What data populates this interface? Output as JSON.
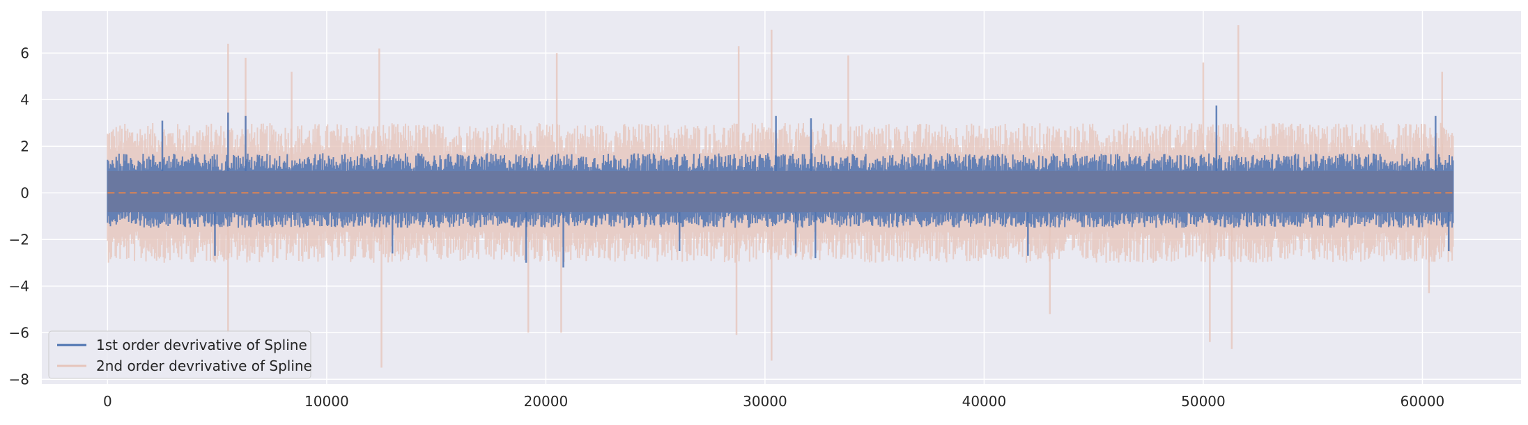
{
  "chart_data": {
    "type": "line",
    "title": "",
    "xlabel": "",
    "ylabel": "",
    "xlim": [
      -3000,
      64500
    ],
    "ylim": [
      -8.2,
      7.8
    ],
    "grid": true,
    "legend_position": "lower-left",
    "x_ticks": [
      0,
      10000,
      20000,
      30000,
      40000,
      50000,
      60000
    ],
    "x_tick_labels": [
      "0",
      "10000",
      "20000",
      "30000",
      "40000",
      "50000",
      "60000"
    ],
    "y_ticks": [
      -8,
      -6,
      -4,
      -2,
      0,
      2,
      4,
      6
    ],
    "y_tick_labels": [
      "−8",
      "−6",
      "−4",
      "−2",
      "0",
      "2",
      "4",
      "6"
    ],
    "x_range": [
      0,
      61400
    ],
    "colors": {
      "background": "#eaeaf2",
      "grid": "#ffffff",
      "series1": "#4c72b0",
      "series2": "#e6c5bb",
      "zero_line": "#dd8452"
    },
    "series": [
      {
        "name": "1st order devrivative of Spline",
        "color": "#4c72b0",
        "typical_band": [
          -1.5,
          1.7
        ],
        "max": 3.75,
        "min": -3.2,
        "peaks": [
          [
            2500,
            3.1
          ],
          [
            5500,
            3.45
          ],
          [
            6300,
            3.3
          ],
          [
            30500,
            3.3
          ],
          [
            32100,
            3.2
          ],
          [
            50600,
            3.75
          ],
          [
            60600,
            3.3
          ]
        ],
        "troughs": [
          [
            4900,
            -2.7
          ],
          [
            13000,
            -2.6
          ],
          [
            19100,
            -3.0
          ],
          [
            20800,
            -3.2
          ],
          [
            26100,
            -2.5
          ],
          [
            31400,
            -2.6
          ],
          [
            32300,
            -2.8
          ],
          [
            42000,
            -2.7
          ],
          [
            61200,
            -2.5
          ]
        ]
      },
      {
        "name": "2nd order devrivative of Spline",
        "color": "#e6c5bb",
        "typical_band": [
          -3.0,
          3.0
        ],
        "max": 7.2,
        "min": -7.5,
        "peaks": [
          [
            5500,
            6.4
          ],
          [
            6300,
            5.8
          ],
          [
            8400,
            5.2
          ],
          [
            12400,
            6.2
          ],
          [
            20500,
            6.0
          ],
          [
            28800,
            6.3
          ],
          [
            30300,
            7.0
          ],
          [
            33800,
            5.9
          ],
          [
            50000,
            5.6
          ],
          [
            51600,
            7.2
          ],
          [
            60900,
            5.2
          ]
        ],
        "troughs": [
          [
            5500,
            -6.0
          ],
          [
            12500,
            -7.5
          ],
          [
            19200,
            -6.0
          ],
          [
            20700,
            -6.0
          ],
          [
            28700,
            -6.1
          ],
          [
            30300,
            -7.2
          ],
          [
            43000,
            -5.2
          ],
          [
            50300,
            -6.4
          ],
          [
            51300,
            -6.7
          ],
          [
            60300,
            -4.3
          ]
        ]
      },
      {
        "name": "",
        "color": "#dd8452",
        "style": "dashed",
        "values": [
          0,
          0
        ],
        "x": [
          0,
          61400
        ]
      }
    ]
  }
}
